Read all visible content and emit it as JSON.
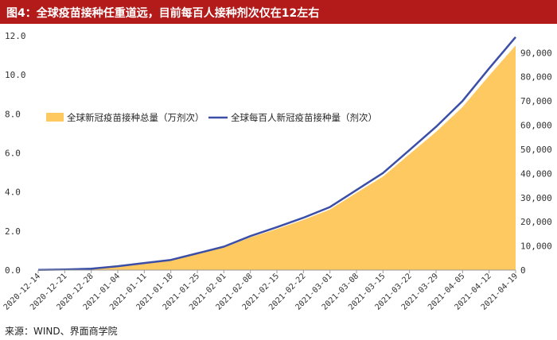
{
  "header": {
    "title": "图4：全球疫苗接种任重道远，目前每百人接种剂次仅在12左右"
  },
  "footer": {
    "source": "来源：WIND、界面商学院"
  },
  "colors": {
    "title_bg": "#b31b1b",
    "area_fill": "#ffc962",
    "line": "#3b4fa6"
  },
  "chart_data": {
    "type": "area",
    "title": "图4：全球疫苗接种任重道远，目前每百人接种剂次仅在12左右",
    "x_ticks": [
      "2020-12-14",
      "2020-12-21",
      "2020-12-28",
      "2021-01-04",
      "2021-01-11",
      "2021-01-18",
      "2021-01-25",
      "2021-02-01",
      "2021-02-08",
      "2021-02-15",
      "2021-02-22",
      "2021-03-01",
      "2021-03-08",
      "2021-03-15",
      "2021-03-22",
      "2021-03-29",
      "2021-04-05",
      "2021-04-12",
      "2021-04-19"
    ],
    "y_left": {
      "min": 0,
      "max": 12,
      "ticks": [
        "0.0",
        "2.0",
        "4.0",
        "6.0",
        "8.0",
        "10.0",
        "12.0"
      ]
    },
    "y_right": {
      "min": 0,
      "max": 97000,
      "ticks": [
        "0",
        "10,000",
        "20,000",
        "30,000",
        "40,000",
        "50,000",
        "60,000",
        "70,000",
        "80,000",
        "90,000"
      ]
    },
    "grid": false,
    "legend_position": "left-middle",
    "series": [
      {
        "name": "全球新冠疫苗接种总量（万剂次）",
        "kind": "area",
        "axis": "right",
        "x": [
          "2020-12-14",
          "2020-12-21",
          "2020-12-28",
          "2021-01-04",
          "2021-01-11",
          "2021-01-18",
          "2021-01-25",
          "2021-02-01",
          "2021-02-08",
          "2021-02-15",
          "2021-02-22",
          "2021-03-01",
          "2021-03-08",
          "2021-03-15",
          "2021-03-22",
          "2021-03-29",
          "2021-04-05",
          "2021-04-12",
          "2021-04-19"
        ],
        "values": [
          80,
          200,
          500,
          1500,
          2800,
          4000,
          6700,
          9300,
          13500,
          17000,
          20800,
          25100,
          32000,
          38700,
          48000,
          57200,
          67500,
          80500,
          93000
        ]
      },
      {
        "name": "全球每百人新冠疫苗接种量（剂次）",
        "kind": "line",
        "axis": "left",
        "x": [
          "2020-12-14",
          "2020-12-21",
          "2020-12-28",
          "2021-01-04",
          "2021-01-11",
          "2021-01-18",
          "2021-01-25",
          "2021-02-01",
          "2021-02-08",
          "2021-02-15",
          "2021-02-22",
          "2021-03-01",
          "2021-03-08",
          "2021-03-15",
          "2021-03-22",
          "2021-03-29",
          "2021-04-05",
          "2021-04-12",
          "2021-04-19"
        ],
        "values": [
          0.01,
          0.03,
          0.07,
          0.2,
          0.36,
          0.52,
          0.86,
          1.2,
          1.74,
          2.2,
          2.68,
          3.23,
          4.1,
          4.97,
          6.15,
          7.34,
          8.66,
          10.33,
          11.93
        ]
      }
    ]
  }
}
